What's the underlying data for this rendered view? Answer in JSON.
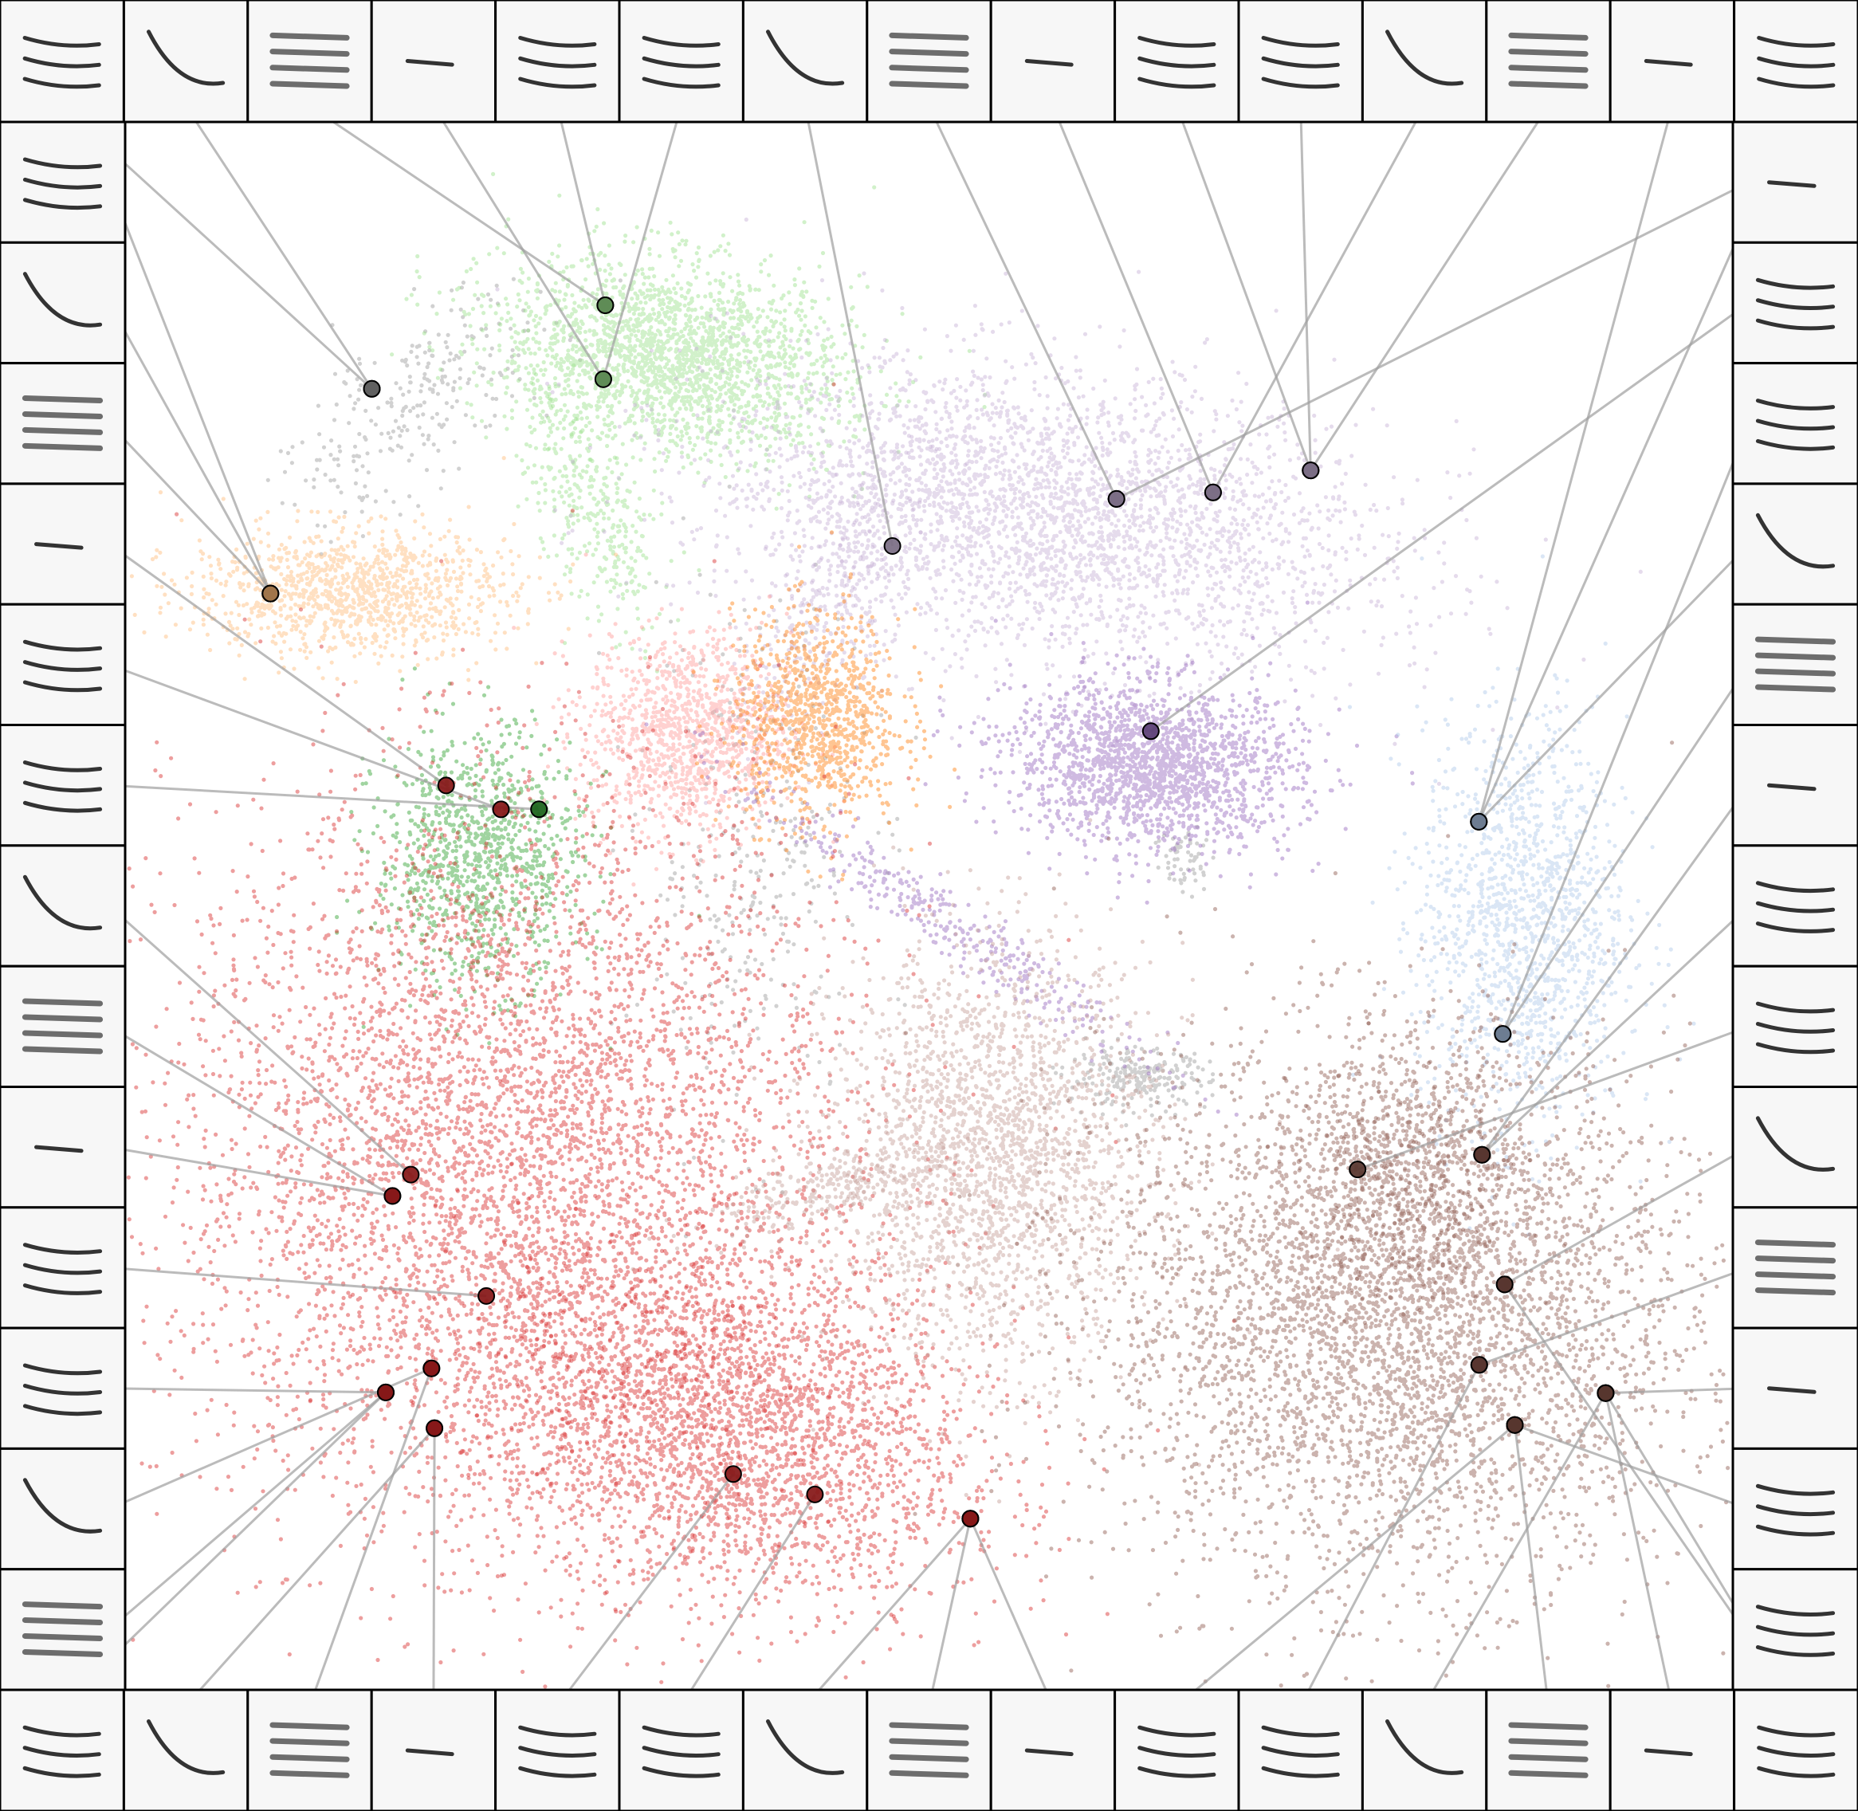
{
  "chart_data": {
    "type": "scatter",
    "title": "",
    "xlabel": "",
    "ylabel": "",
    "axes": "hidden",
    "grid": false,
    "legend": "none",
    "xlim": [
      0,
      100
    ],
    "ylim": [
      0,
      100
    ],
    "series": [
      {
        "color": "#9a9a9a",
        "clusters": [
          {
            "cx": 18,
            "cy": 82,
            "sx": 2.2,
            "sy": 5,
            "rot": -50,
            "n": 260
          },
          {
            "cx": 39,
            "cy": 53,
            "sx": 3.5,
            "sy": 8,
            "rot": 0,
            "n": 320
          },
          {
            "cx": 63,
            "cy": 39,
            "sx": 2.2,
            "sy": 0.9,
            "rot": 0,
            "n": 230
          },
          {
            "cx": 66,
            "cy": 53,
            "sx": 1,
            "sy": 1.2,
            "rot": 0,
            "n": 60
          }
        ]
      },
      {
        "color": "#98df8a",
        "clusters": [
          {
            "cx": 34,
            "cy": 85,
            "sx": 5.5,
            "sy": 3,
            "rot": -10,
            "n": 2200
          },
          {
            "cx": 29,
            "cy": 75,
            "sx": 1.5,
            "sy": 4.5,
            "rot": 25,
            "n": 350
          }
        ]
      },
      {
        "color": "#c5b0d5",
        "clusters": [
          {
            "cx": 57,
            "cy": 75,
            "sx": 10.5,
            "sy": 4.5,
            "rot": -8,
            "n": 3200
          },
          {
            "cx": 44,
            "cy": 69,
            "sx": 1.8,
            "sy": 5,
            "rot": -30,
            "n": 300
          }
        ]
      },
      {
        "color": "#ffbb78",
        "clusters": [
          {
            "cx": 14,
            "cy": 70,
            "sx": 5,
            "sy": 2,
            "rot": 0,
            "n": 1100
          }
        ]
      },
      {
        "color": "#ff9896",
        "clusters": [
          {
            "cx": 35,
            "cy": 61,
            "sx": 3.2,
            "sy": 3.2,
            "rot": 0,
            "n": 1100
          }
        ]
      },
      {
        "color": "#ff7f0e",
        "clusters": [
          {
            "cx": 43,
            "cy": 62,
            "sx": 2.6,
            "sy": 3.3,
            "rot": 0,
            "n": 1000
          }
        ]
      },
      {
        "color": "#2ca02c",
        "clusters": [
          {
            "cx": 22,
            "cy": 53,
            "sx": 3.2,
            "sy": 4,
            "rot": 0,
            "n": 1000
          }
        ]
      },
      {
        "color": "#9467bd",
        "clusters": [
          {
            "cx": 64,
            "cy": 59,
            "sx": 4.5,
            "sy": 2.6,
            "rot": -5,
            "n": 1800
          },
          {
            "cx": 51,
            "cy": 49,
            "sx": 8,
            "sy": 0.9,
            "rot": -35,
            "n": 350
          }
        ]
      },
      {
        "color": "#aec7e8",
        "clusters": [
          {
            "cx": 87,
            "cy": 49,
            "sx": 3.2,
            "sy": 6.5,
            "rot": 0,
            "n": 1400
          }
        ]
      },
      {
        "color": "#d62728",
        "clusters": [
          {
            "cx": 24,
            "cy": 34,
            "sx": 10.5,
            "sy": 11.5,
            "rot": 0,
            "n": 8000
          },
          {
            "cx": 37,
            "cy": 17,
            "sx": 8,
            "sy": 5.5,
            "rot": -15,
            "n": 3000
          }
        ]
      },
      {
        "color": "#c49c94",
        "clusters": [
          {
            "cx": 54,
            "cy": 34,
            "sx": 5,
            "sy": 6.5,
            "rot": 0,
            "n": 2200
          },
          {
            "cx": 43,
            "cy": 32,
            "sx": 4,
            "sy": 1,
            "rot": 20,
            "n": 250
          }
        ]
      },
      {
        "color": "#8c564b",
        "clusters": [
          {
            "cx": 79,
            "cy": 24,
            "sx": 9,
            "sy": 8.5,
            "rot": 0,
            "n": 4500
          },
          {
            "cx": 80,
            "cy": 33,
            "sx": 3.5,
            "sy": 4,
            "rot": 0,
            "n": 700
          }
        ]
      }
    ]
  }
}
